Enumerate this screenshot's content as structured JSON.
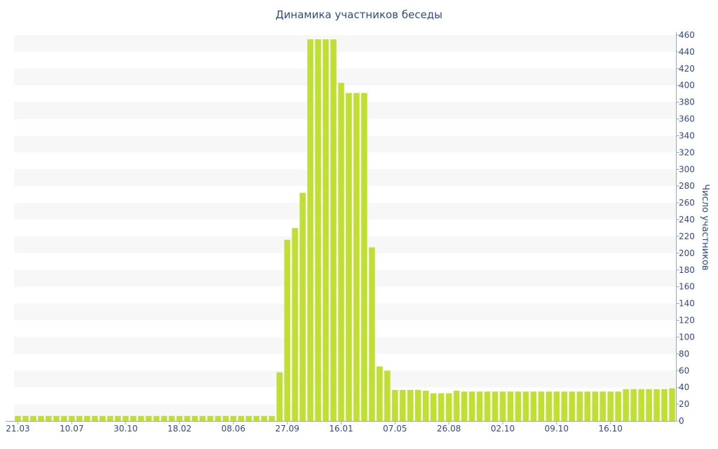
{
  "chart_data": {
    "type": "bar",
    "title": "Динамика участников беседы",
    "xlabel": "",
    "ylabel": "Число участников",
    "ylim": [
      0,
      460
    ],
    "y_ticks": [
      0,
      20,
      40,
      60,
      80,
      100,
      120,
      140,
      160,
      180,
      200,
      220,
      240,
      260,
      280,
      300,
      320,
      340,
      360,
      380,
      400,
      420,
      440,
      460
    ],
    "y_axis_side": "right",
    "x_tick_labels": [
      {
        "index": 0,
        "label": "21.03"
      },
      {
        "index": 7,
        "label": "10.07"
      },
      {
        "index": 14,
        "label": "30.10"
      },
      {
        "index": 21,
        "label": "18.02"
      },
      {
        "index": 28,
        "label": "08.06"
      },
      {
        "index": 35,
        "label": "27.09"
      },
      {
        "index": 42,
        "label": "16.01"
      },
      {
        "index": 49,
        "label": "07.05"
      },
      {
        "index": 56,
        "label": "26.08"
      },
      {
        "index": 63,
        "label": "02.10"
      },
      {
        "index": 70,
        "label": "09.10"
      },
      {
        "index": 77,
        "label": "16.10"
      }
    ],
    "values": [
      6,
      6,
      6,
      6,
      6,
      6,
      6,
      6,
      6,
      6,
      6,
      6,
      6,
      6,
      6,
      6,
      6,
      6,
      6,
      6,
      6,
      6,
      6,
      6,
      6,
      6,
      6,
      6,
      6,
      6,
      6,
      6,
      6,
      6,
      58,
      216,
      230,
      272,
      455,
      455,
      455,
      455,
      403,
      391,
      391,
      391,
      207,
      65,
      60,
      37,
      37,
      37,
      37,
      36,
      33,
      33,
      33,
      36,
      35,
      35,
      35,
      35,
      35,
      35,
      35,
      35,
      35,
      35,
      35,
      35,
      35,
      35,
      35,
      35,
      35,
      35,
      35,
      35,
      35,
      38,
      38,
      38,
      38,
      38,
      38,
      39
    ],
    "bar_color": "#bfe033",
    "grid": "horizontal alternating bands",
    "legend": "none"
  }
}
